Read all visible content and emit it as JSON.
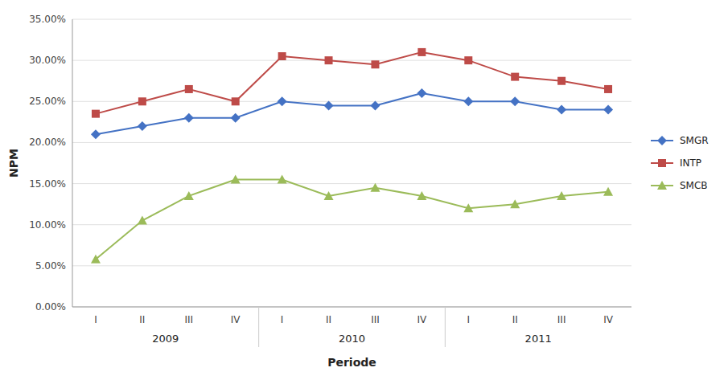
{
  "chart_data": {
    "type": "line",
    "categories": [
      "I",
      "II",
      "III",
      "IV",
      "I",
      "II",
      "III",
      "IV",
      "I",
      "II",
      "III",
      "IV"
    ],
    "series": [
      {
        "name": "SMGR",
        "color": "#4472C4",
        "marker": "diamond",
        "values": [
          21.0,
          22.0,
          23.0,
          23.0,
          25.0,
          24.5,
          24.5,
          26.0,
          25.0,
          25.0,
          24.0,
          24.0
        ]
      },
      {
        "name": "INTP",
        "color": "#BE4B48",
        "marker": "square",
        "values": [
          23.5,
          25.0,
          26.5,
          25.0,
          30.5,
          30.0,
          29.5,
          31.0,
          30.0,
          28.0,
          27.5,
          26.5
        ]
      },
      {
        "name": "SMCB",
        "color": "#9BBB59",
        "marker": "triangle",
        "values": [
          5.8,
          10.5,
          13.5,
          15.5,
          15.5,
          13.5,
          14.5,
          13.5,
          12.0,
          12.5,
          13.5,
          14.0
        ]
      }
    ],
    "ylim": [
      0,
      35
    ],
    "yticks": [
      {
        "value": 0,
        "label": "0.00%"
      },
      {
        "value": 5,
        "label": "5.00%"
      },
      {
        "value": 10,
        "label": "10.00%"
      },
      {
        "value": 15,
        "label": "15.00%"
      },
      {
        "value": 20,
        "label": "20.00%"
      },
      {
        "value": 25,
        "label": "25.00%"
      },
      {
        "value": 30,
        "label": "30.00%"
      },
      {
        "value": 35,
        "label": "35.00%"
      }
    ],
    "ylabel": "NPM",
    "xlabel": "Periode",
    "annotations": [
      "2009",
      "2010",
      "2011"
    ],
    "grid": true,
    "legend": "right"
  }
}
